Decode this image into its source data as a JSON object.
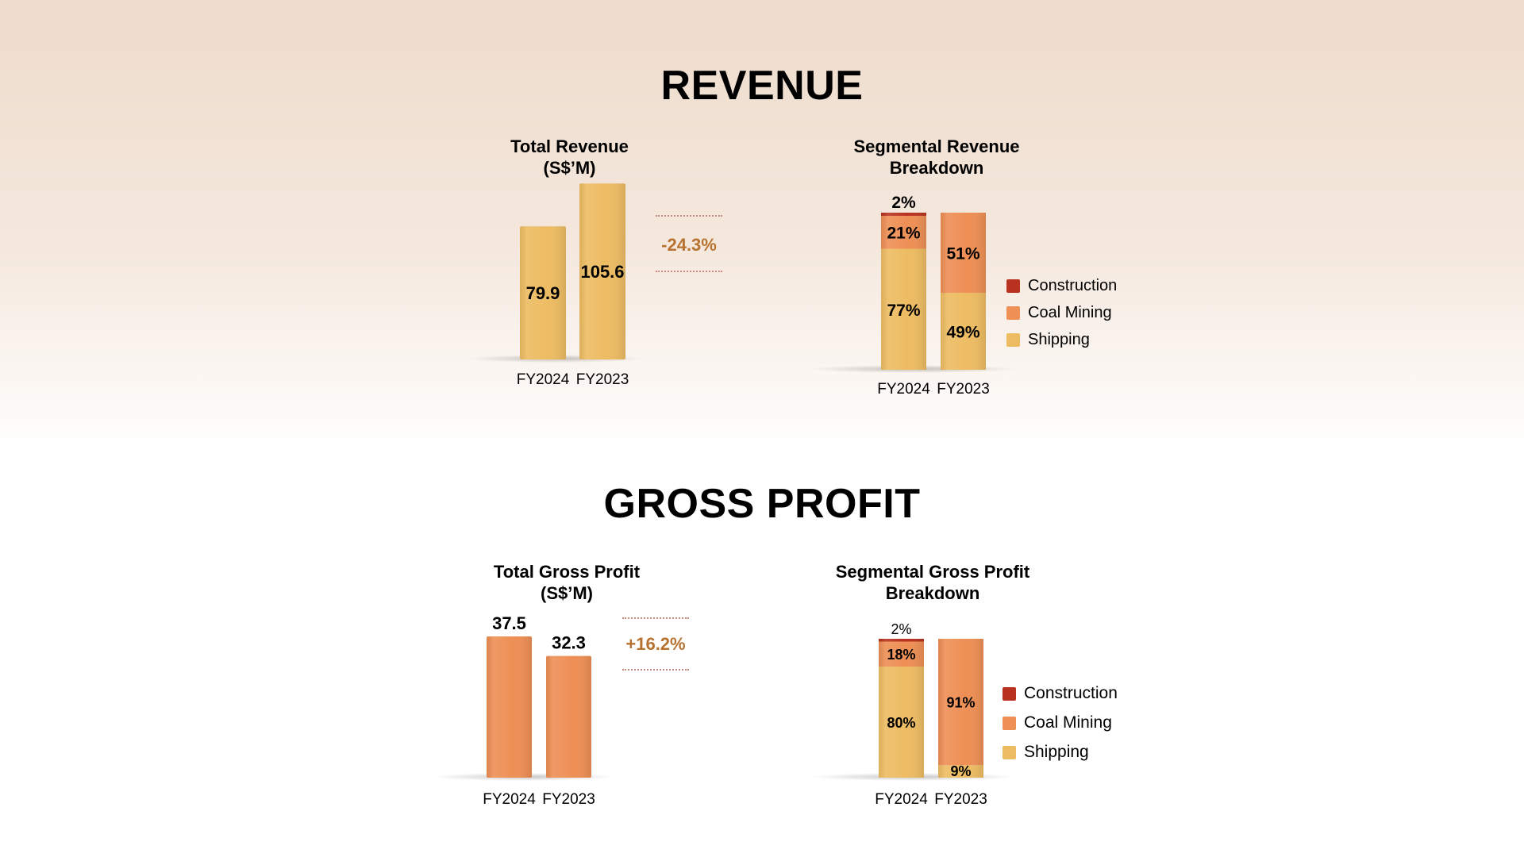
{
  "revenue_section": {
    "title": "REVENUE"
  },
  "gross_profit_section": {
    "title": "GROSS PROFIT"
  },
  "colors": {
    "shipping": "#edbc62",
    "coal_mining": "#ee8f55",
    "construction": "#b8321f",
    "growth_text": "#b8722f"
  },
  "legend": [
    "Construction",
    "Coal Mining",
    "Shipping"
  ],
  "chart_data": [
    {
      "id": "total-revenue",
      "type": "bar",
      "title_lines": [
        "Total Revenue",
        "(S$’M)"
      ],
      "categories": [
        "FY2024",
        "FY2023"
      ],
      "values": [
        79.9,
        105.6
      ],
      "value_labels": [
        "79.9",
        "105.6"
      ],
      "growth_label": "-24.3%",
      "ylim": [
        0,
        140
      ]
    },
    {
      "id": "segmental-revenue",
      "type": "bar",
      "stacked": true,
      "title_lines": [
        "Segmental Revenue",
        "Breakdown"
      ],
      "categories": [
        "FY2024",
        "FY2023"
      ],
      "series": [
        {
          "name": "Shipping",
          "values": [
            77,
            49
          ],
          "labels": [
            "77%",
            "49%"
          ]
        },
        {
          "name": "Coal Mining",
          "values": [
            21,
            51
          ],
          "labels": [
            "21%",
            "51%"
          ]
        },
        {
          "name": "Construction",
          "values": [
            2,
            0
          ],
          "labels": [
            "2%",
            ""
          ]
        }
      ],
      "ylim": [
        0,
        100
      ]
    },
    {
      "id": "total-gross-profit",
      "type": "bar",
      "title_lines": [
        "Total Gross Profit",
        "(S$’M)"
      ],
      "categories": [
        "FY2024",
        "FY2023"
      ],
      "values": [
        37.5,
        32.3
      ],
      "value_labels": [
        "37.5",
        "32.3"
      ],
      "growth_label": "+16.2%",
      "ylim": [
        0,
        37.5
      ]
    },
    {
      "id": "segmental-gross-profit",
      "type": "bar",
      "stacked": true,
      "title_lines": [
        "Segmental Gross Profit",
        "Breakdown"
      ],
      "categories": [
        "FY2024",
        "FY2023"
      ],
      "series": [
        {
          "name": "Shipping",
          "values": [
            80,
            9
          ],
          "labels": [
            "80%",
            "9%"
          ]
        },
        {
          "name": "Coal Mining",
          "values": [
            18,
            91
          ],
          "labels": [
            "18%",
            "91%"
          ]
        },
        {
          "name": "Construction",
          "values": [
            2,
            0
          ],
          "labels": [
            "2%",
            ""
          ]
        }
      ],
      "ylim": [
        0,
        100
      ]
    }
  ]
}
